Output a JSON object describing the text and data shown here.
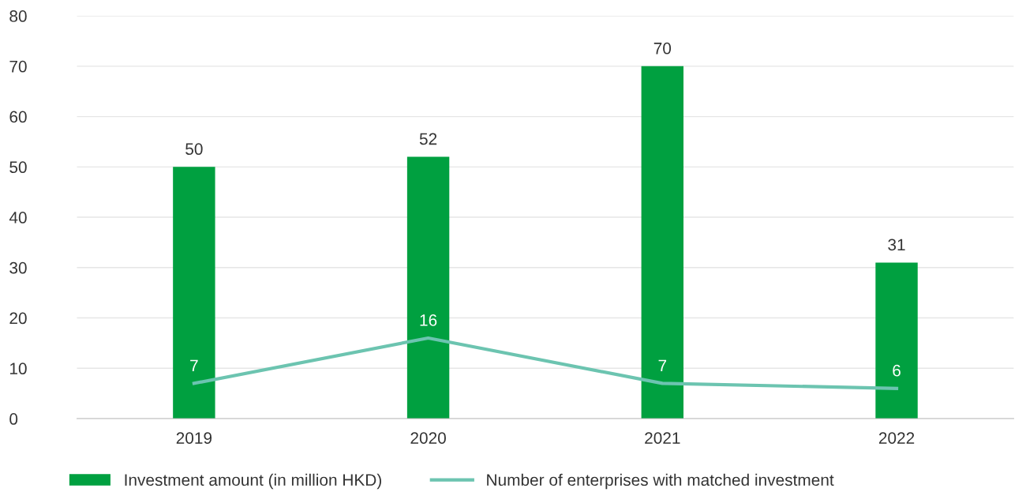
{
  "chart_data": {
    "type": "bar",
    "categories": [
      "2019",
      "2020",
      "2021",
      "2022"
    ],
    "series": [
      {
        "name": "Investment amount (in million HKD)",
        "color": "#00a040",
        "values": [
          50,
          52,
          70,
          31
        ]
      },
      {
        "name": "Number of enterprises with matched investment",
        "type": "line",
        "color": "#6cc4b0",
        "values": [
          7,
          16,
          7,
          6
        ]
      }
    ],
    "ylim": [
      0,
      80
    ],
    "yticks": [
      0,
      10,
      20,
      30,
      40,
      50,
      60,
      70,
      80
    ],
    "grid": "y",
    "legend": "bottom",
    "data_labels": true,
    "marker": "none",
    "line_style": "solid"
  }
}
